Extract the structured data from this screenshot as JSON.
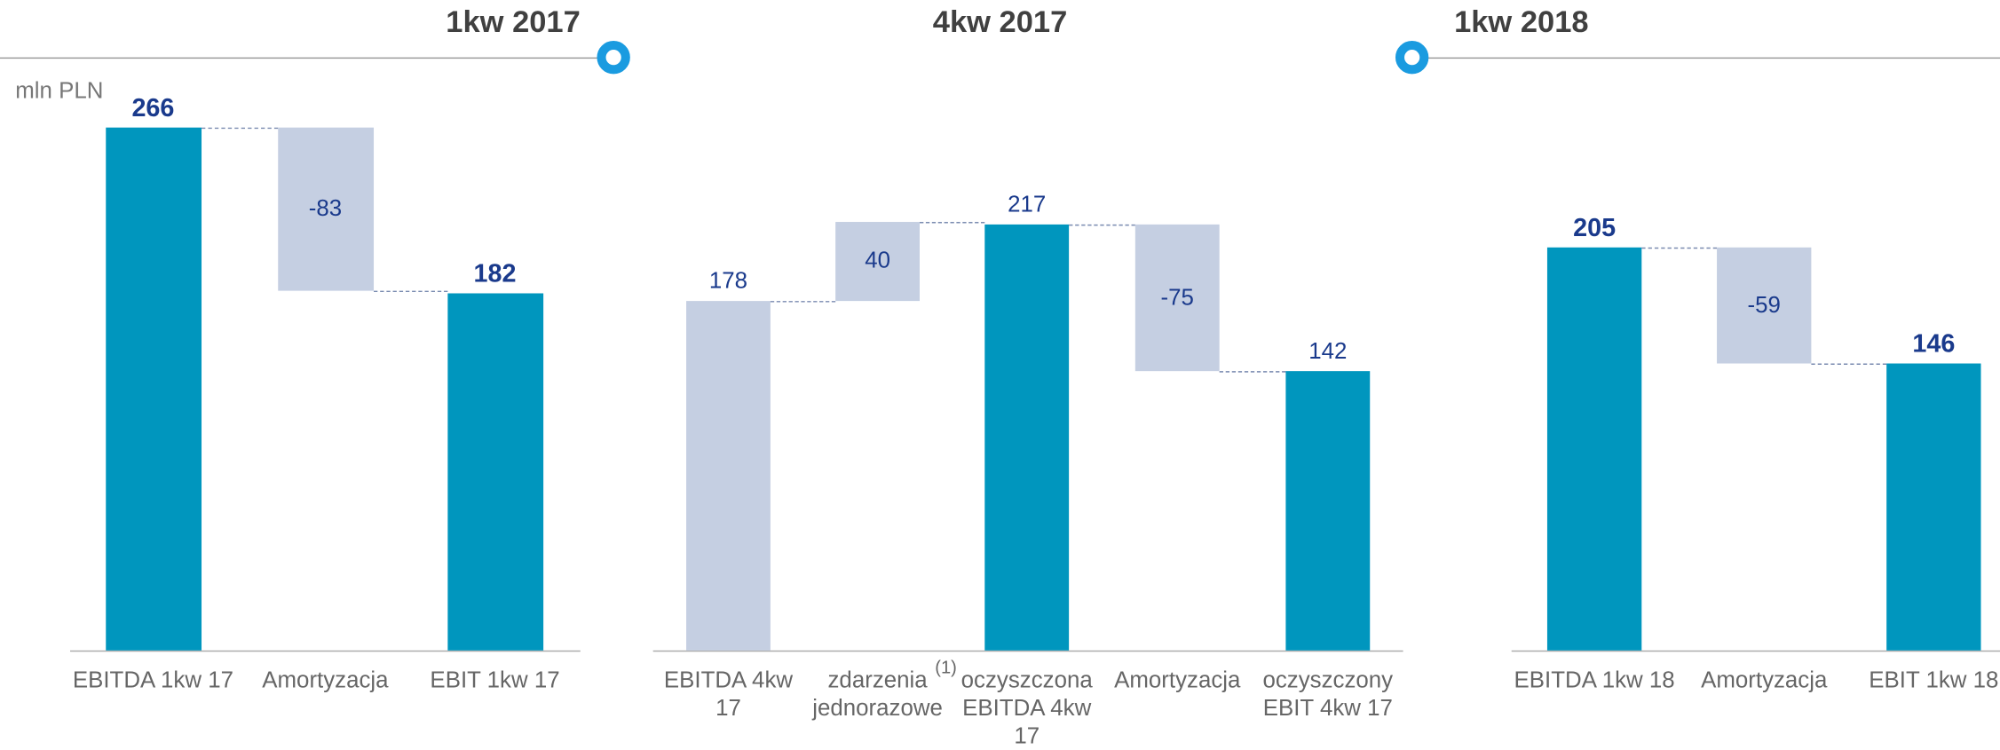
{
  "chart_data": [
    {
      "type": "waterfall",
      "title": "1kw 2017",
      "ylabel": "mln PLN",
      "categories": [
        "EBITDA 1kw 17",
        "Amortyzacja",
        "EBIT 1kw 17"
      ],
      "values": [
        266,
        -83,
        182
      ],
      "totals": [
        true,
        false,
        true
      ],
      "colors": [
        "#0096be",
        "#c5cfe2",
        "#0096be"
      ]
    },
    {
      "type": "waterfall",
      "title": "4kw 2017",
      "annotation": "(1)",
      "categories": [
        "EBITDA 4kw 17",
        "zdarzenia jednorazowe",
        "oczyszczona EBITDA 4kw 17",
        "Amortyzacja",
        "oczyszczony EBIT 4kw 17"
      ],
      "values": [
        178,
        40,
        217,
        -75,
        142
      ],
      "totals": [
        true,
        false,
        true,
        false,
        true
      ],
      "colors": [
        "#c5cfe2",
        "#c5cfe2",
        "#0096be",
        "#c5cfe2",
        "#0096be"
      ]
    },
    {
      "type": "waterfall",
      "title": "1kw 2018",
      "categories": [
        "EBITDA 1kw 18",
        "Amortyzacja",
        "EBIT 1kw 18"
      ],
      "values": [
        205,
        -59,
        146
      ],
      "totals": [
        true,
        false,
        true
      ],
      "colors": [
        "#0096be",
        "#c5cfe2",
        "#0096be"
      ]
    }
  ]
}
